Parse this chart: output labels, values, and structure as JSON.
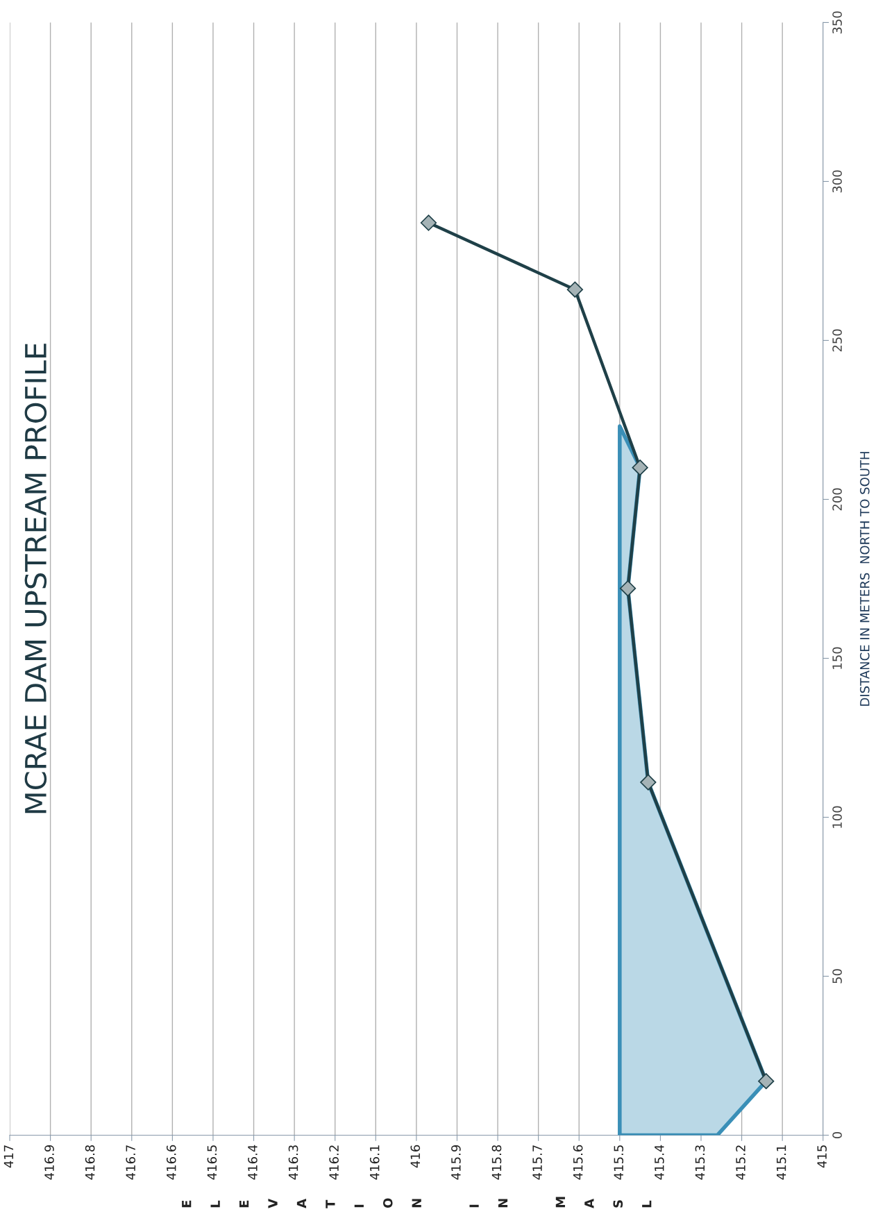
{
  "chart_data": {
    "type": "line",
    "title": "MCRAE DAM UPSTREAM PROFILE",
    "xlabel": "ELEVATION IN MASL",
    "ylabel": "DISTANCE IN METERS  NORTH TO SOUTH",
    "series": [
      {
        "type": "area",
        "color": "#3a8fb7",
        "x": [
          415.26,
          415.14,
          415.43,
          415.48,
          415.45,
          415.5,
          415.5
        ],
        "values": [
          0,
          17,
          111,
          172,
          210,
          223,
          0
        ]
      },
      {
        "color": "#1f4048",
        "marker": "diamond",
        "x": [
          415.14,
          415.43,
          415.48,
          415.45,
          415.61,
          415.97
        ],
        "values": [
          17,
          111,
          172,
          210,
          266,
          287
        ]
      }
    ],
    "xlim": [
      417,
      415
    ],
    "xticks": [
      417,
      416.9,
      416.8,
      416.7,
      416.6,
      416.5,
      416.4,
      416.3,
      416.2,
      416.1,
      416,
      415.9,
      415.8,
      415.7,
      415.6,
      415.5,
      415.4,
      415.3,
      415.2,
      415.1,
      415
    ],
    "ylim": [
      0,
      350
    ],
    "yticks": [
      0,
      50,
      100,
      150,
      200,
      250,
      300,
      350
    ],
    "grid": "x"
  }
}
